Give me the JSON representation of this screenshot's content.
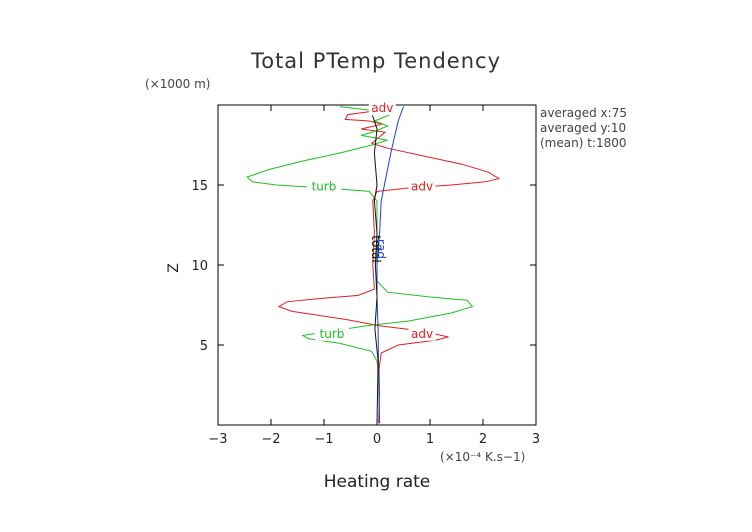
{
  "chart_data": {
    "type": "line",
    "title": "Total PTemp Tendency",
    "xlabel": "Heating rate",
    "ylabel": "Z",
    "x_units": "(×10⁻⁴ K.s−1)",
    "y_units": "(×1000 m)",
    "xlim": [
      -3,
      3
    ],
    "ylim": [
      0,
      20
    ],
    "xticks": [
      "−3",
      "−2",
      "−1",
      "0",
      "1",
      "2",
      "3"
    ],
    "yticks": [
      "5",
      "10",
      "15"
    ],
    "ytick_values": [
      5,
      10,
      15
    ],
    "grid": false,
    "info_lines": [
      "averaged  x:75",
      "averaged  y:10",
      "(mean) t:1800"
    ],
    "colors": {
      "adv": "#e02020",
      "turb": "#20c020",
      "rad": "#2040e0",
      "total": "#101010"
    },
    "series": [
      {
        "name": "adv",
        "color_key": "adv",
        "points": [
          [
            0.03,
            0.1
          ],
          [
            0.05,
            2.0
          ],
          [
            0.04,
            3.5
          ],
          [
            0.08,
            4.5
          ],
          [
            0.4,
            5.0
          ],
          [
            1.1,
            5.3
          ],
          [
            1.35,
            5.5
          ],
          [
            0.8,
            5.9
          ],
          [
            0.05,
            6.2
          ],
          [
            -0.6,
            6.6
          ],
          [
            -1.6,
            7.1
          ],
          [
            -1.85,
            7.4
          ],
          [
            -1.7,
            7.7
          ],
          [
            -1.1,
            7.9
          ],
          [
            -0.35,
            8.1
          ],
          [
            -0.05,
            8.5
          ],
          [
            -0.08,
            10.0
          ],
          [
            -0.05,
            12.0
          ],
          [
            -0.08,
            14.0
          ],
          [
            0.0,
            14.6
          ],
          [
            0.55,
            14.8
          ],
          [
            1.4,
            15.0
          ],
          [
            2.05,
            15.2
          ],
          [
            2.3,
            15.4
          ],
          [
            2.1,
            15.8
          ],
          [
            1.6,
            16.3
          ],
          [
            0.9,
            16.8
          ],
          [
            0.2,
            17.3
          ],
          [
            -0.1,
            17.6
          ],
          [
            0.15,
            18.3
          ],
          [
            -0.3,
            18.5
          ],
          [
            0.1,
            18.8
          ],
          [
            -0.15,
            19.0
          ],
          [
            -0.6,
            19.1
          ],
          [
            -0.55,
            19.4
          ],
          [
            -0.1,
            19.6
          ],
          [
            0.0,
            19.9
          ]
        ]
      },
      {
        "name": "turb",
        "color_key": "turb",
        "points": [
          [
            0.05,
            0.1
          ],
          [
            0.04,
            3.0
          ],
          [
            0.0,
            4.0
          ],
          [
            -0.1,
            4.6
          ],
          [
            -0.7,
            5.1
          ],
          [
            -1.3,
            5.4
          ],
          [
            -1.4,
            5.6
          ],
          [
            -0.8,
            5.9
          ],
          [
            -0.2,
            6.2
          ],
          [
            0.6,
            6.5
          ],
          [
            1.4,
            7.0
          ],
          [
            1.8,
            7.4
          ],
          [
            1.7,
            7.8
          ],
          [
            1.0,
            8.0
          ],
          [
            0.2,
            8.3
          ],
          [
            0.0,
            9.0
          ],
          [
            0.0,
            12.0
          ],
          [
            0.0,
            14.0
          ],
          [
            -0.15,
            14.6
          ],
          [
            -0.9,
            14.8
          ],
          [
            -1.9,
            15.0
          ],
          [
            -2.35,
            15.2
          ],
          [
            -2.45,
            15.5
          ],
          [
            -2.0,
            16.0
          ],
          [
            -1.4,
            16.5
          ],
          [
            -0.7,
            17.0
          ],
          [
            -0.1,
            17.5
          ],
          [
            0.2,
            17.8
          ],
          [
            -0.3,
            18.1
          ],
          [
            0.0,
            18.4
          ],
          [
            0.2,
            18.7
          ],
          [
            -0.05,
            19.0
          ],
          [
            0.25,
            19.4
          ],
          [
            -0.2,
            19.7
          ],
          [
            -0.7,
            19.9
          ]
        ]
      },
      {
        "name": "rad",
        "color_key": "rad",
        "points": [
          [
            0.05,
            0.1
          ],
          [
            0.03,
            3.0
          ],
          [
            0.02,
            6.0
          ],
          [
            0.0,
            8.0
          ],
          [
            0.0,
            10.0
          ],
          [
            0.05,
            12.0
          ],
          [
            0.08,
            14.0
          ],
          [
            0.14,
            15.0
          ],
          [
            0.2,
            16.0
          ],
          [
            0.26,
            17.0
          ],
          [
            0.33,
            18.0
          ],
          [
            0.4,
            19.0
          ],
          [
            0.5,
            19.9
          ]
        ]
      },
      {
        "name": "total",
        "color_key": "total",
        "points": [
          [
            0.0,
            0.1
          ],
          [
            0.02,
            4.0
          ],
          [
            -0.04,
            6.0
          ],
          [
            0.0,
            8.0
          ],
          [
            -0.03,
            10.0
          ],
          [
            0.0,
            12.0
          ],
          [
            -0.05,
            14.0
          ],
          [
            0.0,
            15.0
          ],
          [
            -0.05,
            17.0
          ],
          [
            0.0,
            18.5
          ],
          [
            -0.1,
            19.5
          ],
          [
            -0.05,
            19.9
          ]
        ]
      }
    ],
    "curve_labels": [
      {
        "text": "adv",
        "x": 0.1,
        "y": 19.8,
        "color_key": "adv"
      },
      {
        "text": "turb",
        "x": -1.0,
        "y": 14.9,
        "color_key": "turb"
      },
      {
        "text": "adv",
        "x": 0.85,
        "y": 14.9,
        "color_key": "adv"
      },
      {
        "text": "total",
        "x": -0.02,
        "y": 11.0,
        "color_key": "total",
        "rotate": 90
      },
      {
        "text": "rad",
        "x": 0.08,
        "y": 11.0,
        "color_key": "rad",
        "rotate": 90
      },
      {
        "text": "turb",
        "x": -0.85,
        "y": 5.7,
        "color_key": "turb"
      },
      {
        "text": "adv",
        "x": 0.85,
        "y": 5.7,
        "color_key": "adv"
      }
    ]
  }
}
